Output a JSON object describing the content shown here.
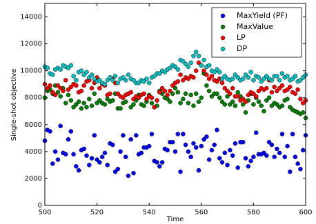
{
  "chart_data": {
    "type": "scatter",
    "xlabel": "Time",
    "ylabel": "Single-shot objective",
    "xlim": [
      500,
      600
    ],
    "xticks": [
      500,
      520,
      540,
      560,
      580,
      600
    ],
    "ylim": [
      0,
      15000
    ],
    "yticks": [
      0,
      2000,
      4000,
      6000,
      8000,
      10000,
      12000,
      14000
    ],
    "legend": "upper right",
    "x": [
      500,
      501,
      502,
      503,
      504,
      505,
      506,
      507,
      508,
      509,
      510,
      511,
      512,
      513,
      514,
      515,
      516,
      517,
      518,
      519,
      520,
      521,
      522,
      523,
      524,
      525,
      526,
      527,
      528,
      529,
      530,
      531,
      532,
      533,
      534,
      535,
      536,
      537,
      538,
      539,
      540,
      541,
      542,
      543,
      544,
      545,
      546,
      547,
      548,
      549,
      550,
      551,
      552,
      553,
      554,
      555,
      556,
      557,
      558,
      559,
      560,
      561,
      562,
      563,
      564,
      565,
      566,
      567,
      568,
      569,
      570,
      571,
      572,
      573,
      574,
      575,
      576,
      577,
      578,
      579,
      580,
      581,
      582,
      583,
      584,
      585,
      586,
      587,
      588,
      589,
      590,
      591,
      592,
      593,
      594,
      595,
      596,
      597,
      598,
      599,
      600
    ],
    "series": [
      {
        "name": "MaxYield (PF)",
        "color": "#0000ff",
        "values": [
          4800,
          5600,
          5500,
          3100,
          4000,
          3400,
          5900,
          3900,
          3800,
          4900,
          5500,
          3800,
          2900,
          2600,
          4100,
          4200,
          3700,
          3000,
          3500,
          5200,
          3400,
          3200,
          3600,
          3900,
          3000,
          4600,
          4500,
          2500,
          2700,
          4000,
          5200,
          3600,
          2200,
          4900,
          2400,
          5200,
          3800,
          3900,
          4300,
          4300,
          4400,
          5300,
          3300,
          3200,
          2900,
          3200,
          4200,
          4100,
          4700,
          4700,
          4000,
          5300,
          2500,
          5300,
          4500,
          4000,
          3600,
          4600,
          4300,
          2600,
          4400,
          4900,
          5100,
          3400,
          4100,
          4500,
          5600,
          3500,
          3200,
          3900,
          3000,
          4100,
          3700,
          4600,
          2800,
          4700,
          4700,
          3500,
          2900,
          3300,
          3600,
          5400,
          3800,
          3800,
          3900,
          3700,
          4700,
          4500,
          3600,
          4200,
          3900,
          5300,
          3600,
          4400,
          2500,
          5300,
          3600,
          3100,
          2700,
          4100,
          5200
        ]
      },
      {
        "name": "MaxValue",
        "color": "#008000",
        "values": [
          8000,
          8500,
          8600,
          8300,
          8900,
          8400,
          8100,
          8700,
          7600,
          8200,
          7800,
          7300,
          7500,
          7700,
          7200,
          7600,
          7300,
          7900,
          7400,
          8300,
          7600,
          7800,
          7600,
          7500,
          7900,
          7700,
          7800,
          8300,
          7200,
          7200,
          7600,
          7700,
          8300,
          7300,
          7500,
          7800,
          8200,
          7500,
          7400,
          7700,
          8200,
          7600,
          7300,
          7400,
          8500,
          8300,
          8000,
          7900,
          7700,
          8300,
          8700,
          8400,
          7600,
          7900,
          8300,
          7600,
          8200,
          7400,
          8300,
          7700,
          8000,
          9800,
          8900,
          8500,
          8100,
          8300,
          8300,
          8000,
          7700,
          7500,
          8100,
          7500,
          7700,
          7400,
          8400,
          8100,
          7500,
          6900,
          7800,
          8300,
          7500,
          8000,
          7700,
          7400,
          7000,
          7800,
          8000,
          7400,
          7600,
          7500,
          7300,
          7400,
          7800,
          7900,
          7300,
          7100,
          7000,
          6900,
          6800,
          6900,
          6500
        ]
      },
      {
        "name": "LP",
        "color": "#ff0000",
        "values": [
          9000,
          8700,
          8900,
          8400,
          8200,
          8900,
          8700,
          8500,
          9300,
          8600,
          8800,
          9000,
          8900,
          8400,
          8500,
          8900,
          9200,
          9300,
          8700,
          9100,
          9500,
          8700,
          9000,
          8900,
          8200,
          8300,
          9400,
          9100,
          8300,
          8100,
          8000,
          8200,
          8300,
          8400,
          7900,
          8100,
          8000,
          8200,
          8300,
          7900,
          8100,
          8000,
          7300,
          7800,
          8400,
          8700,
          8500,
          8200,
          8500,
          8900,
          9100,
          9200,
          9700,
          9300,
          9500,
          9400,
          9600,
          9500,
          10000,
          10600,
          10400,
          10000,
          9700,
          9400,
          9600,
          9300,
          9200,
          9400,
          9100,
          8700,
          8500,
          8300,
          8700,
          8100,
          8100,
          7800,
          7900,
          7700,
          8200,
          8400,
          8300,
          8100,
          8500,
          8700,
          8600,
          8700,
          9300,
          8400,
          8800,
          8500,
          8700,
          8900,
          8500,
          8600,
          8800,
          8400,
          8300,
          8600,
          7900,
          7600,
          7800
        ]
      },
      {
        "name": "DP",
        "color": "#00bfbf",
        "values": [
          10300,
          10200,
          9800,
          9700,
          10100,
          10200,
          10100,
          10400,
          10300,
          10200,
          10400,
          9600,
          9300,
          9900,
          10000,
          9700,
          9900,
          9500,
          9700,
          9400,
          9200,
          9300,
          9100,
          9000,
          9300,
          9500,
          9300,
          9600,
          9100,
          9400,
          9500,
          9300,
          9700,
          9400,
          9300,
          9100,
          9100,
          9300,
          9200,
          9400,
          9100,
          9500,
          9600,
          9800,
          9800,
          10000,
          9900,
          10100,
          10200,
          10400,
          10300,
          10100,
          10800,
          10700,
          10500,
          10300,
          10600,
          11100,
          11400,
          11100,
          10400,
          10800,
          10300,
          10400,
          10000,
          9900,
          10100,
          9900,
          9400,
          9600,
          9400,
          9300,
          9400,
          9700,
          9500,
          9300,
          9400,
          9700,
          9500,
          9900,
          9300,
          9600,
          9500,
          9200,
          9400,
          9600,
          9400,
          9300,
          9600,
          9600,
          9300,
          9800,
          9500,
          9600,
          9300,
          9400,
          9600,
          9200,
          9300,
          9500,
          9700
        ]
      }
    ]
  }
}
